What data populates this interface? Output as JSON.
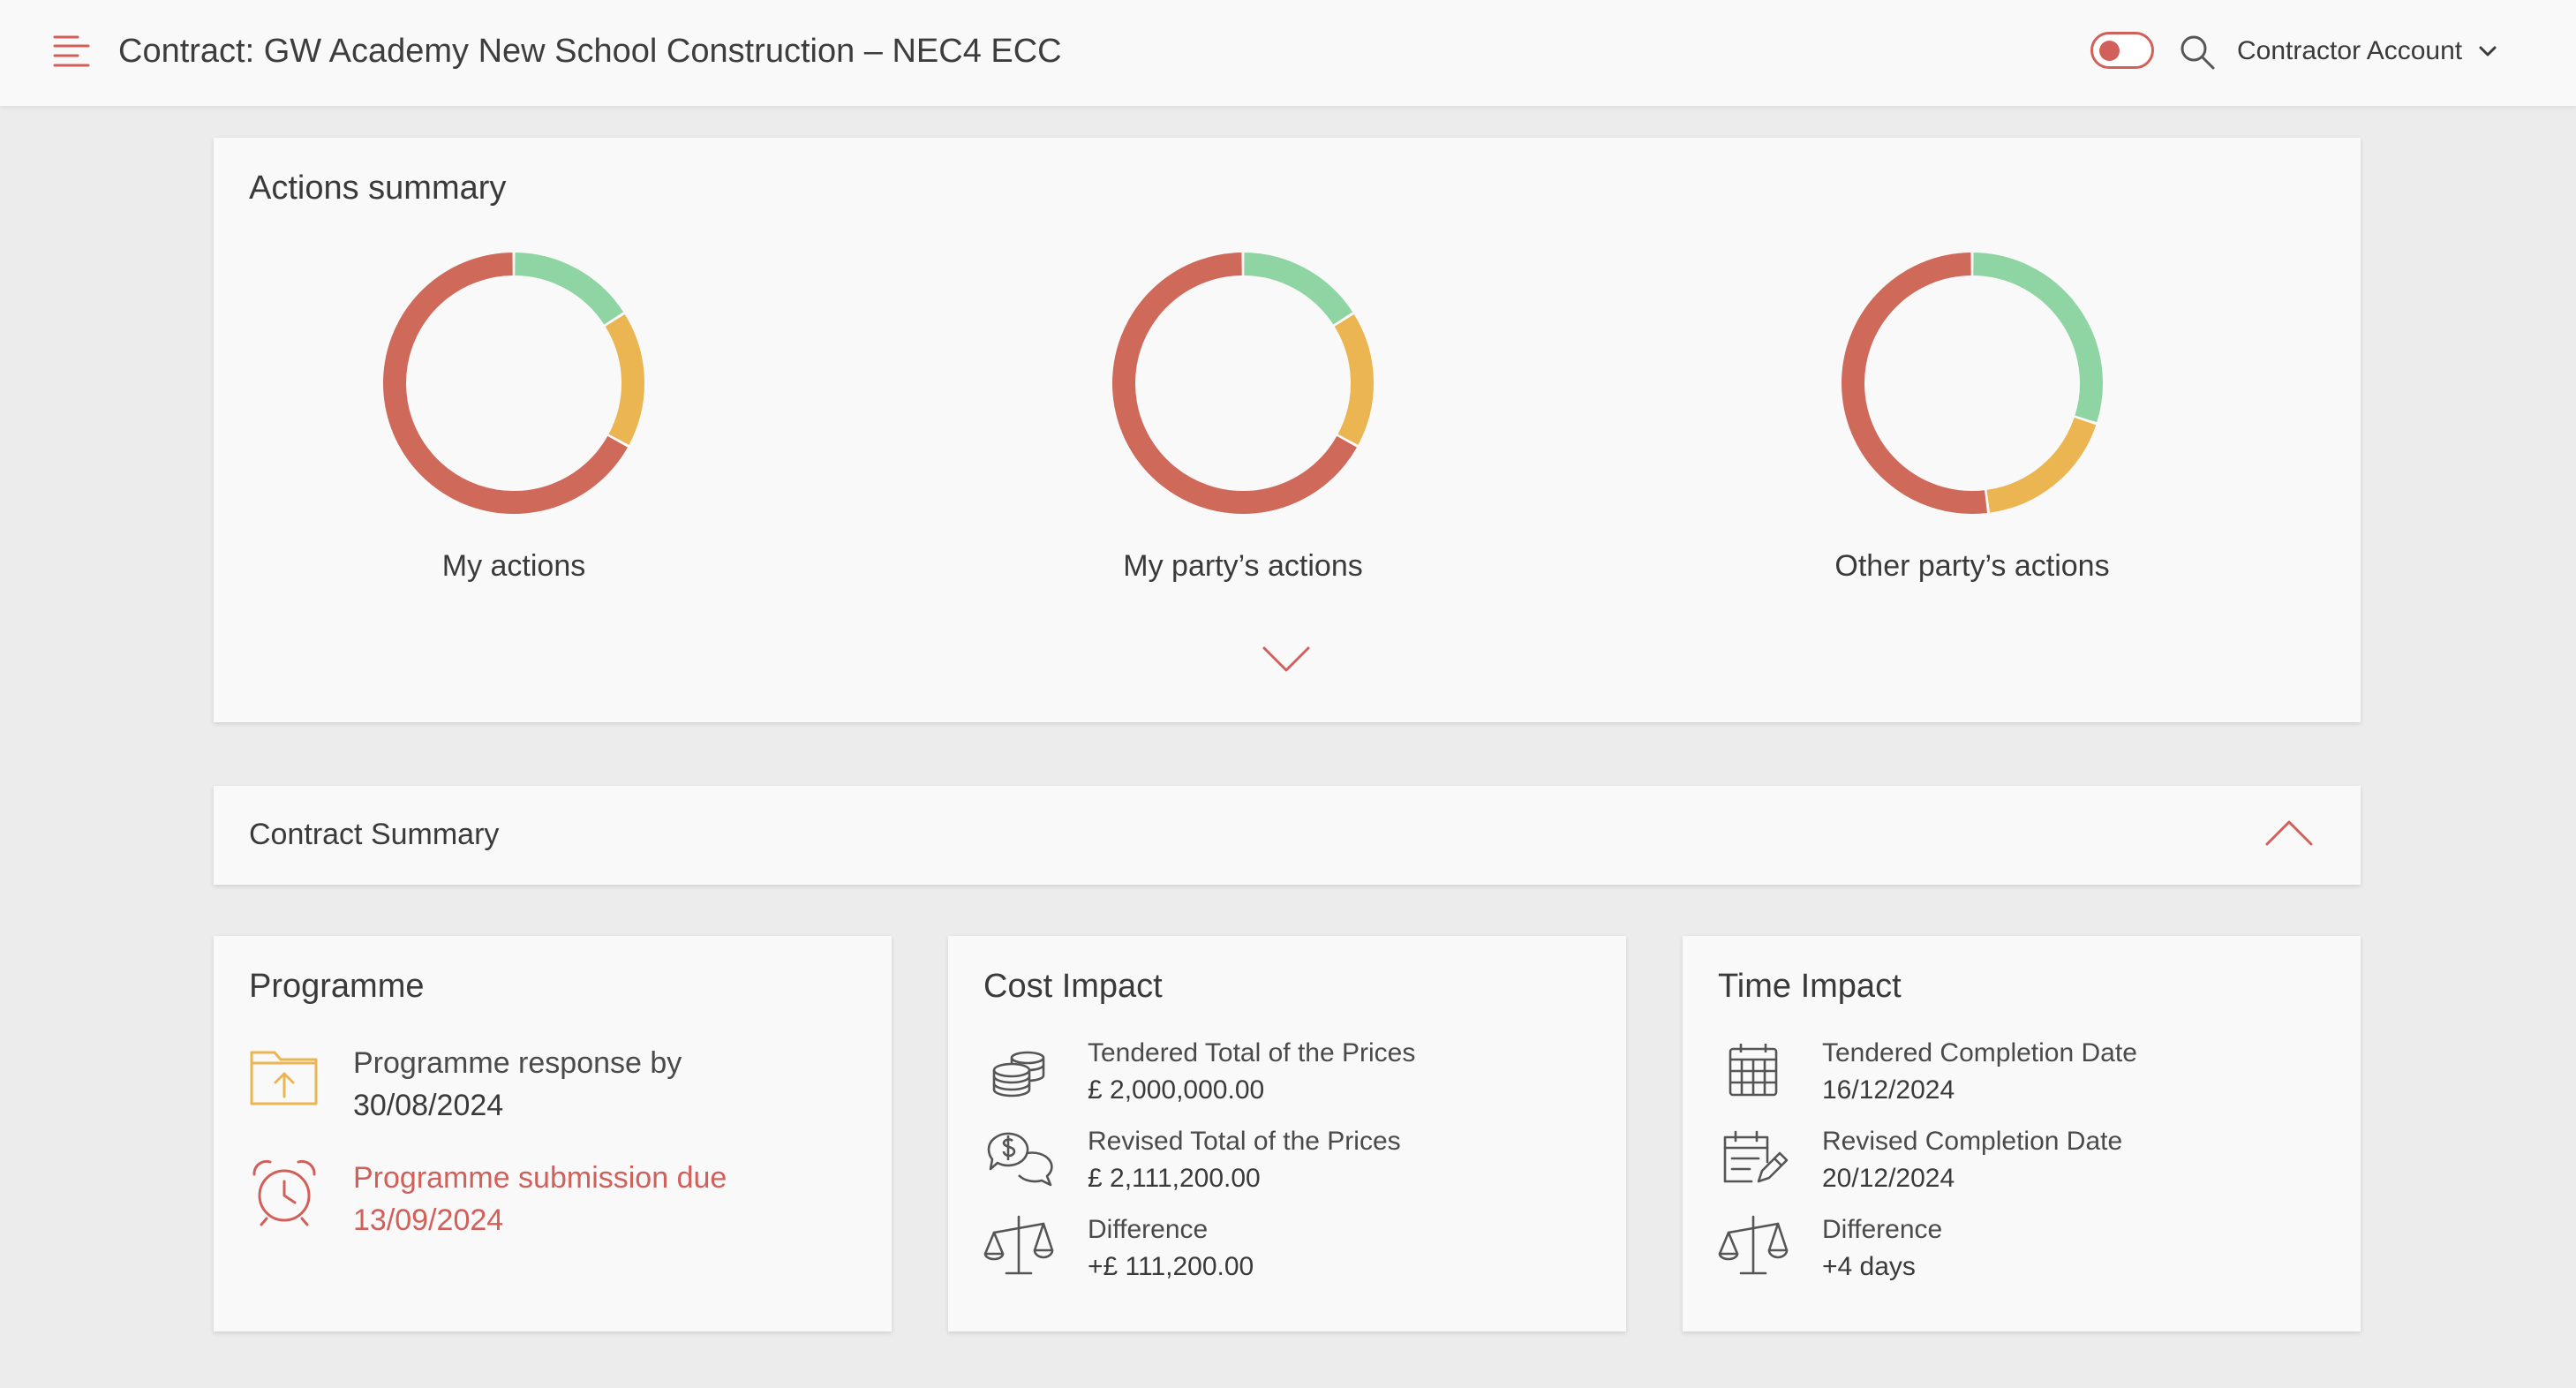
{
  "header": {
    "title": "Contract: GW Academy New School Construction – NEC4 ECC",
    "account_label": "Contractor Account"
  },
  "colors": {
    "accent": "#d2605a",
    "red": "#cf6a5b",
    "yellow": "#ebb552",
    "green": "#8fd5a3"
  },
  "actions_summary": {
    "title": "Actions summary",
    "donuts": [
      {
        "label": "My actions",
        "green": 0.16,
        "yellow": 0.17,
        "red": 0.67
      },
      {
        "label": "My party’s actions",
        "green": 0.16,
        "yellow": 0.17,
        "red": 0.67
      },
      {
        "label": "Other party’s actions",
        "green": 0.3,
        "yellow": 0.18,
        "red": 0.52
      }
    ]
  },
  "contract_summary": {
    "title": "Contract Summary"
  },
  "programme": {
    "title": "Programme",
    "response_label": "Programme response by",
    "response_date": "30/08/2024",
    "submission_label": "Programme submission due",
    "submission_date": "13/09/2024"
  },
  "cost_impact": {
    "title": "Cost Impact",
    "tendered_label": "Tendered Total of the Prices",
    "tendered_value": "£ 2,000,000.00",
    "revised_label": "Revised Total of the Prices",
    "revised_value": "£ 2,111,200.00",
    "difference_label": "Difference",
    "difference_value": "+£ 111,200.00"
  },
  "time_impact": {
    "title": "Time Impact",
    "tendered_label": "Tendered Completion Date",
    "tendered_value": "16/12/2024",
    "revised_label": "Revised Completion Date",
    "revised_value": "20/12/2024",
    "difference_label": "Difference",
    "difference_value": "+4 days"
  }
}
